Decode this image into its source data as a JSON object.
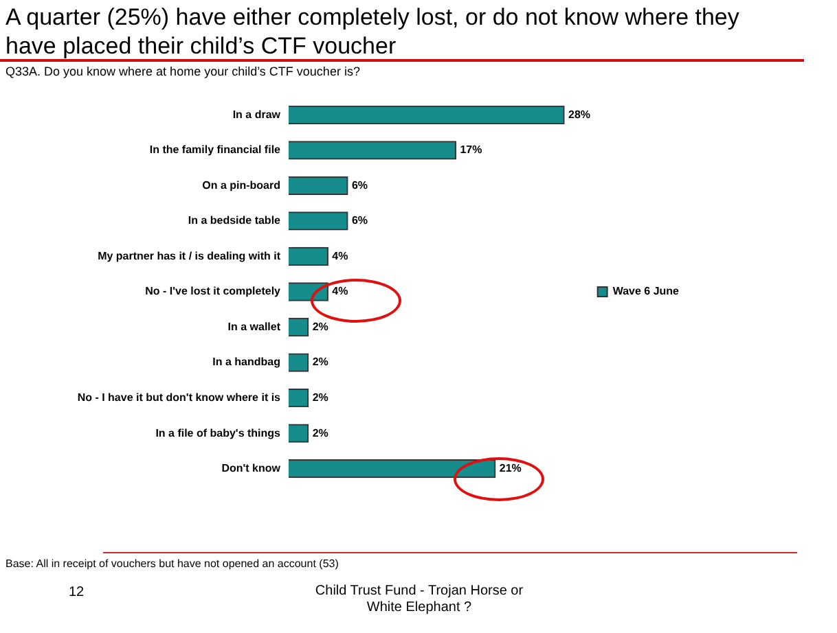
{
  "chart_data": {
    "type": "bar",
    "orientation": "horizontal",
    "title": "A quarter (25%) have either completely lost, or do not know where they have placed their child’s CTF voucher",
    "subtitle": "Q33A. Do you know where at home your child’s CTF voucher is?",
    "categories": [
      "In a draw",
      "In the family financial file",
      "On a pin-board",
      "In a bedside table",
      "My partner has it / is dealing with it",
      "No - I've lost it completely",
      "In a wallet",
      "In a handbag",
      "No - I have it but don't know where it is",
      "In a file of baby's things",
      "Don't know"
    ],
    "series": [
      {
        "name": "Wave 6 June",
        "color": "#168c8c",
        "values": [
          28,
          17,
          6,
          6,
          4,
          4,
          2,
          2,
          2,
          2,
          21
        ],
        "value_labels": [
          "28%",
          "17%",
          "6%",
          "6%",
          "4%",
          "4%",
          "2%",
          "2%",
          "2%",
          "2%",
          "21%"
        ]
      }
    ],
    "legend": "right",
    "tick_labels": "y",
    "annotations": [
      "Base: All in receipt of vouchers but have not opened an account (53)",
      "12",
      "Child Trust Fund - Trojan Horse or White Elephant ?"
    ]
  }
}
